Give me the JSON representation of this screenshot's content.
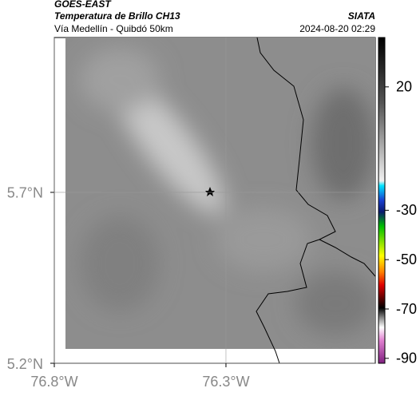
{
  "header": {
    "title": "GOES-EAST",
    "subtitle": "Temperatura de Brillo CH13",
    "source": "SIATA",
    "region": "Vía Medellín - Quibdó 50km",
    "datetime": "2024-08-20 02:29"
  },
  "map": {
    "lon_lim": [
      -76.8,
      -75.865
    ],
    "lat_lim": [
      5.2,
      6.153
    ],
    "lat_ticks": [
      {
        "value": 5.7,
        "label": "5.7°N"
      },
      {
        "value": 5.2,
        "label": "5.2°N"
      }
    ],
    "lon_ticks": [
      {
        "value": -76.8,
        "label": "76.8°W"
      },
      {
        "value": -76.3,
        "label": "76.3°W"
      }
    ],
    "grid": true
  },
  "colorbar": {
    "lim": [
      -92,
      40
    ],
    "ticks": [
      20,
      -30,
      -50,
      -70,
      -90
    ]
  }
}
